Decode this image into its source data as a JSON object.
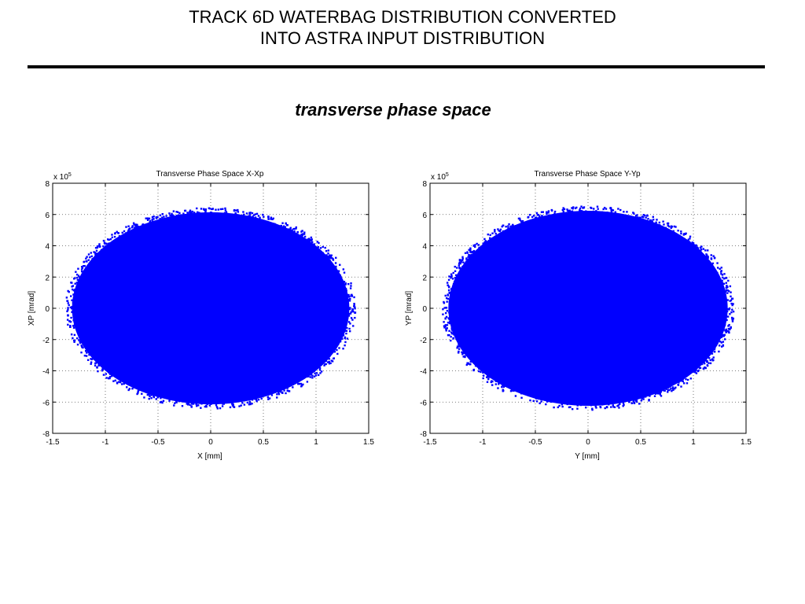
{
  "slide": {
    "title_line1": "TRACK 6D WATERBAG DISTRIBUTION CONVERTED",
    "title_line2": "INTO ASTRA INPUT DISTRIBUTION",
    "section_heading": "transverse phase space"
  },
  "colors": {
    "points": "#0000ff",
    "grid": "#555555",
    "axes": "#000000"
  },
  "chart_data": [
    {
      "type": "scatter",
      "title": "Transverse Phase Space X-Xp",
      "xlabel": "X [mm]",
      "ylabel": "XP [mrad]",
      "exponent_base": "x 10",
      "exponent_power": "5",
      "xlim": [
        -1.5,
        1.5
      ],
      "ylim": [
        -8,
        8
      ],
      "xticks": [
        "-1.5",
        "-1",
        "-0.5",
        "0",
        "0.5",
        "1",
        "1.5"
      ],
      "yticks": [
        "8",
        "6",
        "4",
        "2",
        "0",
        "-2",
        "-4",
        "-6",
        "-8"
      ],
      "grid": true,
      "distribution": {
        "shape": "filled ellipse",
        "x_center": 0,
        "x_halfwidth": 1.35,
        "y_center": 0,
        "y_halfwidth": 6.3,
        "n_points": 1800
      }
    },
    {
      "type": "scatter",
      "title": "Transverse Phase Space Y-Yp",
      "xlabel": "Y [mm]",
      "ylabel": "YP [mrad]",
      "exponent_base": "x 10",
      "exponent_power": "5",
      "xlim": [
        -1.5,
        1.5
      ],
      "ylim": [
        -8,
        8
      ],
      "xticks": [
        "-1.5",
        "-1",
        "-0.5",
        "0",
        "0.5",
        "1",
        "1.5"
      ],
      "yticks": [
        "8",
        "6",
        "4",
        "2",
        "0",
        "-2",
        "-4",
        "-6",
        "-8"
      ],
      "grid": true,
      "distribution": {
        "shape": "filled ellipse",
        "x_center": 0,
        "x_halfwidth": 1.36,
        "y_center": 0,
        "y_halfwidth": 6.4,
        "n_points": 1800
      }
    }
  ]
}
